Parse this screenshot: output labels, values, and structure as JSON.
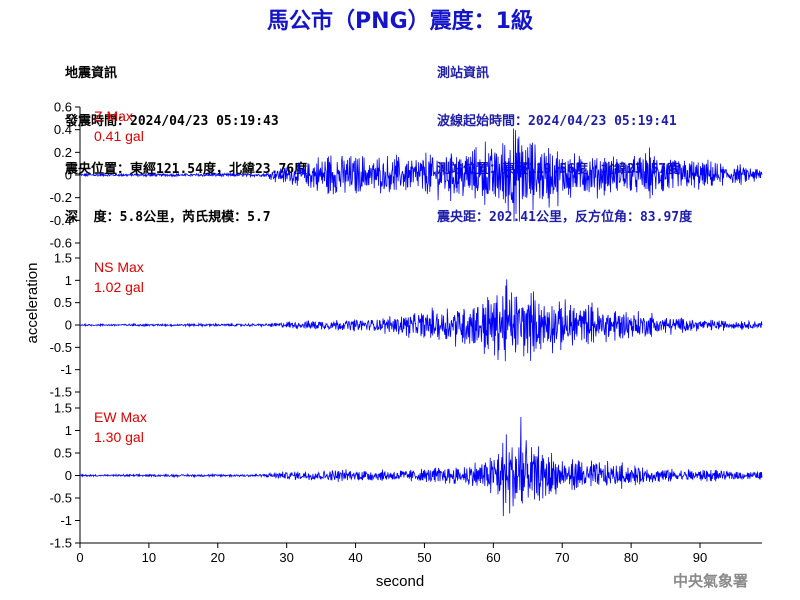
{
  "title": "馬公市（PNG）震度：1級",
  "info_left": {
    "heading": "地震資訊",
    "origin_time": "發震時間：2024/04/23 05:19:43",
    "epicenter": "震央位置：東經121.54度，北緯23.76度",
    "depth_mag": "深  度：5.8公里，芮氏規模：5.7"
  },
  "info_right": {
    "heading": "測站資訊",
    "wave_start": "波線起始時間：2024/04/23 05:19:41",
    "station_loc": "測站位置：東經119.56度，北緯23.57度",
    "distance": "震央距：202.41公里，反方位角：83.97度"
  },
  "footer": "中央氣象署",
  "colors": {
    "trace": "#0000ff",
    "label": "#e00000",
    "title": "#1414c8"
  },
  "chart_data": {
    "type": "line",
    "xlabel": "second",
    "ylabel": "acceleration",
    "xlim": [
      0,
      99
    ],
    "xticks": [
      0,
      10,
      20,
      30,
      40,
      50,
      60,
      70,
      80,
      90
    ],
    "grid": false,
    "panels": [
      {
        "name": "Z",
        "label": "Z Max",
        "max_text": "0.41 gal",
        "max": 0.41,
        "ylim": [
          -0.6,
          0.6
        ],
        "yticks": [
          0.6,
          0.4,
          0.2,
          0,
          -0.2,
          -0.4,
          -0.6
        ],
        "envelope": [
          [
            0,
            0.01
          ],
          [
            27,
            0.015
          ],
          [
            28,
            0.05
          ],
          [
            32,
            0.1
          ],
          [
            36,
            0.18
          ],
          [
            38,
            0.2
          ],
          [
            42,
            0.15
          ],
          [
            48,
            0.16
          ],
          [
            52,
            0.2
          ],
          [
            57,
            0.22
          ],
          [
            61,
            0.3
          ],
          [
            63,
            0.4
          ],
          [
            65,
            0.3
          ],
          [
            70,
            0.2
          ],
          [
            78,
            0.15
          ],
          [
            83,
            0.2
          ],
          [
            90,
            0.12
          ],
          [
            96,
            0.08
          ],
          [
            99,
            0.06
          ]
        ]
      },
      {
        "name": "NS",
        "label": "NS Max",
        "max_text": "1.02 gal",
        "max": 1.02,
        "ylim": [
          -1.5,
          1.5
        ],
        "yticks": [
          1.5,
          1,
          0.5,
          0,
          -0.5,
          -1,
          -1.5
        ],
        "envelope": [
          [
            0,
            0.02
          ],
          [
            27,
            0.03
          ],
          [
            30,
            0.07
          ],
          [
            35,
            0.12
          ],
          [
            40,
            0.12
          ],
          [
            45,
            0.18
          ],
          [
            50,
            0.3
          ],
          [
            55,
            0.45
          ],
          [
            59,
            0.6
          ],
          [
            62,
            0.8
          ],
          [
            64,
            0.7
          ],
          [
            68,
            0.55
          ],
          [
            73,
            0.45
          ],
          [
            78,
            0.35
          ],
          [
            85,
            0.2
          ],
          [
            90,
            0.12
          ],
          [
            95,
            0.1
          ],
          [
            99,
            0.08
          ]
        ]
      },
      {
        "name": "EW",
        "label": "EW Max",
        "max_text": "1.30 gal",
        "max": 1.3,
        "ylim": [
          -1.5,
          1.5
        ],
        "yticks": [
          1.5,
          1,
          0.5,
          0,
          -0.5,
          -1,
          -1.5
        ],
        "envelope": [
          [
            0,
            0.02
          ],
          [
            26,
            0.03
          ],
          [
            29,
            0.08
          ],
          [
            35,
            0.12
          ],
          [
            40,
            0.12
          ],
          [
            45,
            0.12
          ],
          [
            50,
            0.15
          ],
          [
            55,
            0.2
          ],
          [
            59,
            0.35
          ],
          [
            62,
            0.9
          ],
          [
            64,
            1.0
          ],
          [
            66,
            0.6
          ],
          [
            70,
            0.35
          ],
          [
            75,
            0.3
          ],
          [
            80,
            0.2
          ],
          [
            85,
            0.15
          ],
          [
            90,
            0.12
          ],
          [
            95,
            0.1
          ],
          [
            99,
            0.08
          ]
        ]
      }
    ]
  }
}
